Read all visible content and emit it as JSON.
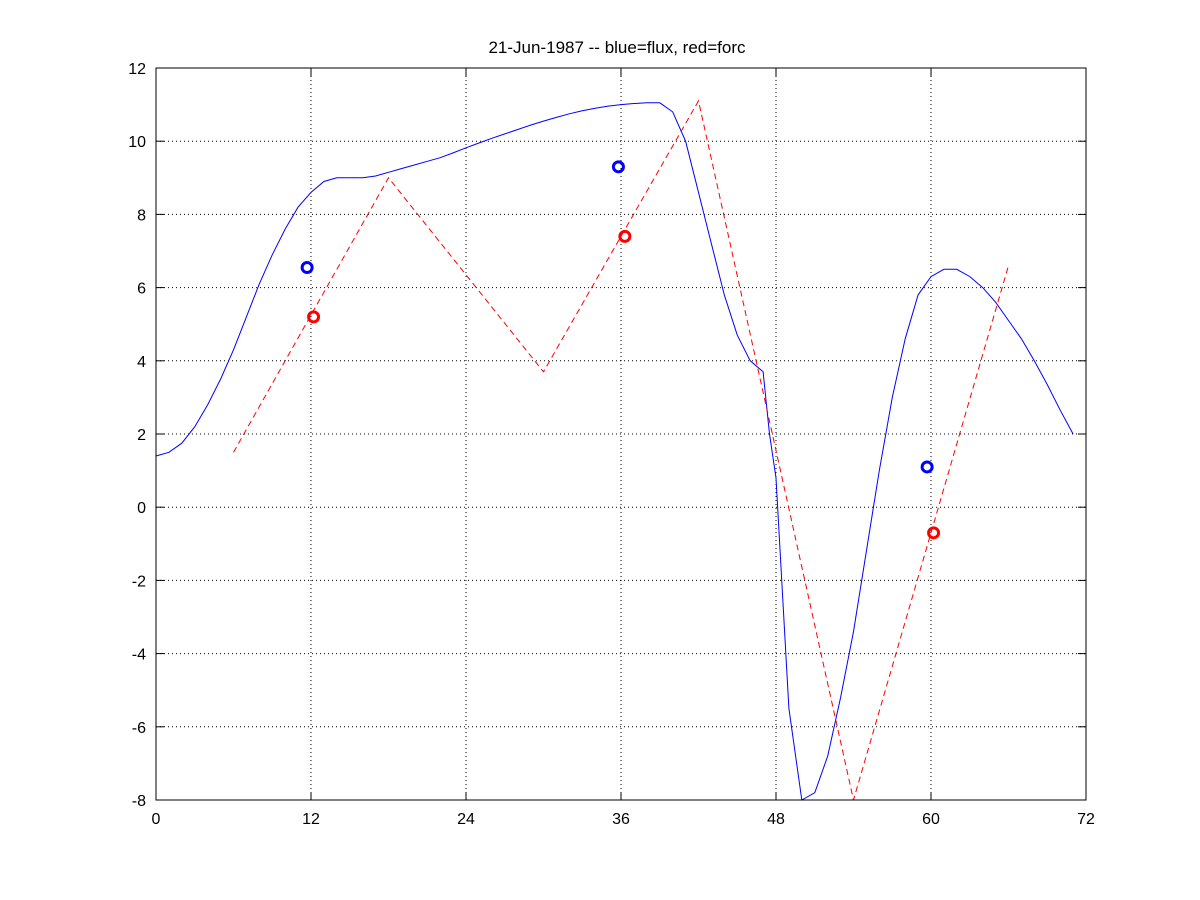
{
  "chart_data": {
    "type": "line",
    "title": "21-Jun-1987 -- blue=flux, red=forc",
    "xlabel": "",
    "ylabel": "",
    "xlim": [
      0,
      72
    ],
    "ylim": [
      -8,
      12
    ],
    "xticks": [
      0,
      12,
      24,
      36,
      48,
      60,
      72
    ],
    "yticks": [
      -8,
      -6,
      -4,
      -2,
      0,
      2,
      4,
      6,
      8,
      10,
      12
    ],
    "grid": true,
    "colors": {
      "flux": "#0000ff",
      "forc": "#ff0000"
    },
    "series": [
      {
        "style": "solid",
        "color": "#0000ff",
        "x": [
          0,
          1,
          2,
          3,
          4,
          5,
          6,
          7,
          8,
          9,
          10,
          11,
          12,
          13,
          14,
          15,
          16,
          17,
          18,
          19,
          20,
          21,
          22,
          23,
          24,
          25,
          26,
          27,
          28,
          29,
          30,
          31,
          32,
          33,
          34,
          35,
          36,
          37,
          38,
          39,
          40,
          41,
          42,
          43,
          44,
          45,
          46,
          47,
          47.5,
          48,
          49,
          50,
          51,
          52,
          53,
          54,
          55,
          56,
          57,
          58,
          59,
          60,
          61,
          62,
          63,
          64,
          65,
          66,
          67,
          68,
          69,
          70,
          71
        ],
        "y": [
          1.4,
          1.5,
          1.75,
          2.2,
          2.8,
          3.5,
          4.3,
          5.2,
          6.1,
          6.9,
          7.6,
          8.2,
          8.6,
          8.9,
          9.0,
          9.0,
          9.0,
          9.05,
          9.15,
          9.25,
          9.35,
          9.45,
          9.55,
          9.68,
          9.82,
          9.95,
          10.08,
          10.2,
          10.32,
          10.44,
          10.55,
          10.65,
          10.75,
          10.83,
          10.9,
          10.96,
          11.0,
          11.03,
          11.05,
          11.05,
          10.8,
          10.0,
          8.6,
          7.2,
          5.8,
          4.7,
          4.0,
          3.7,
          2.0,
          0.8,
          -5.5,
          -8.0,
          -7.8,
          -6.8,
          -5.2,
          -3.4,
          -1.2,
          1.0,
          3.0,
          4.6,
          5.8,
          6.3,
          6.5,
          6.5,
          6.3,
          6.0,
          5.6,
          5.1,
          4.6,
          4.0,
          3.35,
          2.65,
          2.0
        ]
      },
      {
        "style": "dashed",
        "color": "#ff0000",
        "x": [
          6,
          18,
          30,
          42,
          54,
          66
        ],
        "y": [
          1.5,
          9.0,
          3.7,
          11.1,
          -8.0,
          6.6
        ]
      }
    ],
    "markers": [
      {
        "x": 11.7,
        "y": 6.55,
        "color": "#0000ff"
      },
      {
        "x": 12.2,
        "y": 5.2,
        "color": "#ff0000"
      },
      {
        "x": 35.8,
        "y": 9.3,
        "color": "#0000ff"
      },
      {
        "x": 36.3,
        "y": 7.4,
        "color": "#ff0000"
      },
      {
        "x": 59.7,
        "y": 1.1,
        "color": "#0000ff"
      },
      {
        "x": 60.2,
        "y": -0.7,
        "color": "#ff0000"
      }
    ]
  }
}
